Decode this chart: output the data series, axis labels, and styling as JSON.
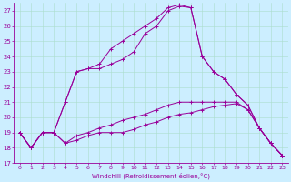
{
  "xlabel": "Windchill (Refroidissement éolien,°C)",
  "background_color": "#cceeff",
  "line_color": "#990099",
  "grid_color": "#aaddcc",
  "xlim": [
    -0.5,
    23.5
  ],
  "ylim": [
    17,
    27.5
  ],
  "yticks": [
    17,
    18,
    19,
    20,
    21,
    22,
    23,
    24,
    25,
    26,
    27
  ],
  "xticks": [
    0,
    1,
    2,
    3,
    4,
    5,
    6,
    7,
    8,
    9,
    10,
    11,
    12,
    13,
    14,
    15,
    16,
    17,
    18,
    19,
    20,
    21,
    22,
    23
  ],
  "series": [
    [
      19.0,
      18.0,
      19.0,
      19.0,
      18.3,
      18.5,
      18.8,
      19.0,
      19.0,
      19.0,
      19.2,
      19.5,
      19.7,
      20.0,
      20.2,
      20.3,
      20.5,
      20.7,
      20.8,
      20.9,
      20.5,
      19.3,
      18.3,
      17.5
    ],
    [
      19.0,
      18.0,
      19.0,
      19.0,
      18.3,
      18.8,
      19.0,
      19.3,
      19.5,
      19.8,
      20.0,
      20.2,
      20.5,
      20.8,
      21.0,
      21.0,
      21.0,
      21.0,
      21.0,
      21.0,
      20.5,
      19.3,
      18.3,
      17.5
    ],
    [
      19.0,
      18.0,
      19.0,
      19.0,
      21.0,
      23.0,
      23.2,
      23.2,
      23.5,
      23.8,
      24.3,
      25.5,
      26.0,
      27.0,
      27.3,
      27.2,
      24.0,
      23.0,
      22.5,
      21.5,
      20.8,
      19.3,
      18.3,
      17.5
    ],
    [
      19.0,
      18.0,
      19.0,
      19.0,
      21.0,
      23.0,
      23.2,
      23.5,
      24.5,
      25.0,
      25.5,
      26.0,
      26.5,
      27.2,
      27.4,
      27.2,
      24.0,
      23.0,
      22.5,
      21.5,
      20.8,
      19.3,
      18.3,
      17.5
    ]
  ]
}
